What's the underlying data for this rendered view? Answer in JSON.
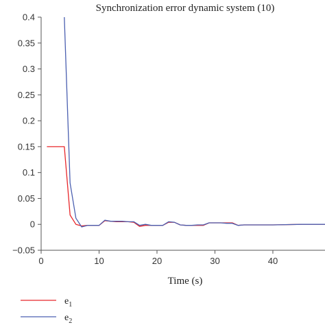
{
  "chart_data": {
    "type": "line",
    "title": "Synchronization error dynamic system (10)",
    "xlabel": "Time (s)",
    "ylabel": "",
    "xlim": [
      0,
      49
    ],
    "ylim": [
      -0.05,
      0.4
    ],
    "xticks": [
      "0",
      "10",
      "20",
      "30",
      "40"
    ],
    "yticks": [
      "0.4",
      "0.35",
      "0.3",
      "0.25",
      "0.2",
      "0.15",
      "0.1",
      "0.05",
      "0",
      "−0.05"
    ],
    "grid": false,
    "legend_position": "bottom-left",
    "series": [
      {
        "name_base": "e",
        "name_sub": "1",
        "color": "#e8262a",
        "x": [
          1,
          4,
          5,
          6,
          7,
          8,
          9,
          10,
          11,
          12,
          13,
          14,
          15,
          16,
          17,
          18,
          19,
          20,
          21,
          22,
          23,
          24,
          25,
          26,
          27,
          28,
          29,
          30,
          31,
          32,
          33,
          34,
          35,
          40,
          45,
          49
        ],
        "y": [
          0.15,
          0.15,
          0.018,
          0.0,
          -0.003,
          -0.002,
          -0.002,
          -0.002,
          0.007,
          0.006,
          0.005,
          0.005,
          0.005,
          0.004,
          -0.004,
          -0.002,
          -0.002,
          -0.002,
          -0.002,
          0.004,
          0.004,
          -0.001,
          -0.002,
          -0.002,
          -0.002,
          -0.002,
          0.003,
          0.003,
          0.003,
          0.003,
          0.003,
          -0.002,
          -0.001,
          -0.001,
          0.0,
          0.0
        ]
      },
      {
        "name_base": "e",
        "name_sub": "2",
        "color": "#4a5fb0",
        "x": [
          4,
          5,
          6,
          7,
          8,
          9,
          10,
          11,
          12,
          13,
          14,
          15,
          16,
          17,
          18,
          19,
          20,
          21,
          22,
          23,
          24,
          25,
          26,
          27,
          28,
          29,
          30,
          31,
          32,
          33,
          34,
          35,
          40,
          45,
          49
        ],
        "y": [
          0.4,
          0.08,
          0.012,
          -0.005,
          -0.002,
          -0.002,
          -0.002,
          0.008,
          0.006,
          0.006,
          0.006,
          0.005,
          0.005,
          -0.002,
          0.0,
          -0.002,
          -0.002,
          -0.002,
          0.005,
          0.004,
          -0.001,
          -0.002,
          -0.002,
          -0.001,
          -0.001,
          0.003,
          0.003,
          0.003,
          0.002,
          0.002,
          -0.002,
          -0.001,
          -0.001,
          0.0,
          0.0
        ]
      }
    ]
  }
}
